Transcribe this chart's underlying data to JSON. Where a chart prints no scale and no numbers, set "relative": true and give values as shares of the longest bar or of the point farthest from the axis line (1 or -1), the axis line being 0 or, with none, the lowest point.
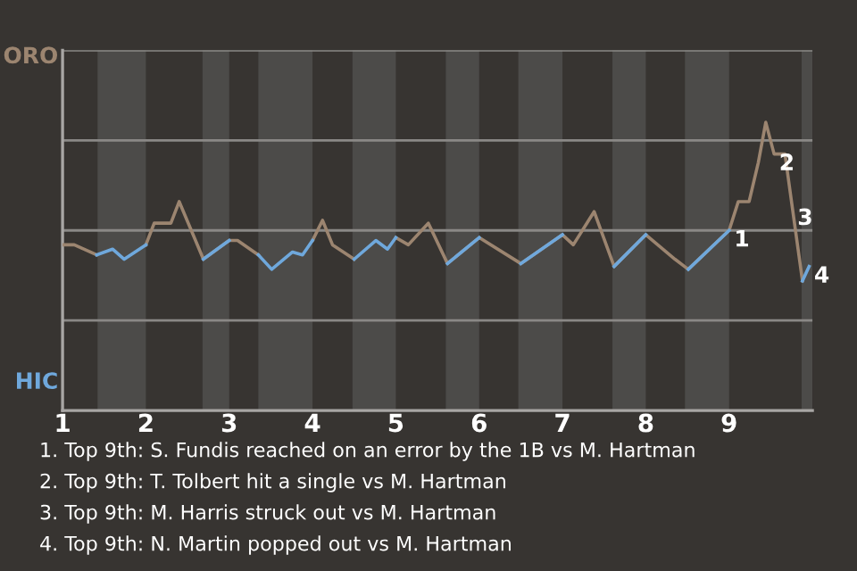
{
  "chart_data": {
    "type": "line",
    "relative": true,
    "x": [
      1.0,
      1.14,
      1.41,
      1.6,
      1.74,
      2.0,
      2.1,
      2.3,
      2.4,
      2.69,
      3.0,
      3.1,
      3.35,
      3.51,
      3.76,
      3.88,
      4.0,
      4.12,
      4.24,
      4.5,
      4.76,
      4.9,
      5.0,
      5.15,
      5.39,
      5.62,
      6.0,
      6.5,
      7.0,
      7.13,
      7.38,
      7.62,
      8.0,
      8.35,
      8.51,
      9.0,
      9.11,
      9.24,
      9.35,
      9.44,
      9.54,
      9.67,
      9.88,
      9.96
    ],
    "xlim": [
      1,
      10
    ],
    "xticks": [
      1,
      2,
      3,
      4,
      5,
      6,
      7,
      8,
      9
    ],
    "series": [
      {
        "color": "#9c8570",
        "values": [
          0.575,
          0.575,
          0.54,
          null,
          null,
          0.575,
          0.65,
          0.65,
          0.725,
          0.525,
          0.59,
          0.59,
          0.54,
          null,
          null,
          null,
          0.59,
          0.66,
          0.575,
          0.525,
          null,
          null,
          0.6,
          0.575,
          0.65,
          0.51,
          0.6,
          0.51,
          0.61,
          0.575,
          0.69,
          0.5,
          0.61,
          0.525,
          0.49,
          0.625,
          0.725,
          0.725,
          0.86,
          1,
          0.89,
          0.89,
          0.45,
          null
        ]
      },
      {
        "color": "#6fa8dc",
        "values": [
          null,
          null,
          0.54,
          0.56,
          0.525,
          0.575,
          null,
          null,
          null,
          null,
          null,
          null,
          0.54,
          0.49,
          0.55,
          0.54,
          0.59,
          null,
          null,
          null,
          null,
          null,
          null,
          null,
          null,
          0.51,
          0.6,
          null,
          null,
          null,
          null,
          0.5,
          0.61,
          null,
          null,
          null,
          null,
          null,
          null,
          null,
          null,
          null,
          0.45,
          0.5
        ]
      },
      {
        "color": "#6fa8dc",
        "values": [
          null,
          null,
          null,
          null,
          null,
          null,
          null,
          null,
          null,
          0.525,
          0.59,
          null,
          null,
          null,
          null,
          null,
          null,
          null,
          null,
          0.525,
          0.59,
          0.56,
          0.6,
          null,
          null,
          null,
          null,
          0.51,
          0.61,
          null,
          null,
          null,
          null,
          null,
          0.49,
          0.625,
          null,
          null,
          null,
          null,
          null,
          null,
          null,
          null
        ]
      }
    ],
    "grid": "y",
    "bands": [
      {
        "axis": "x",
        "from": 1.42,
        "to": 2,
        "color": "#4c4b49"
      },
      {
        "axis": "x",
        "from": 2.68,
        "to": 3,
        "color": "#4c4b49"
      },
      {
        "axis": "x",
        "from": 3.35,
        "to": 4,
        "color": "#4c4b49"
      },
      {
        "axis": "x",
        "from": 4.48,
        "to": 5,
        "color": "#4c4b49"
      },
      {
        "axis": "x",
        "from": 5.6,
        "to": 6,
        "color": "#4c4b49"
      },
      {
        "axis": "x",
        "from": 6.47,
        "to": 7,
        "color": "#4c4b49"
      },
      {
        "axis": "x",
        "from": 7.6,
        "to": 8,
        "color": "#4c4b49"
      },
      {
        "axis": "x",
        "from": 8.47,
        "to": 9,
        "color": "#4c4b49"
      },
      {
        "axis": "x",
        "from": 9.87,
        "to": 10,
        "color": "#4c4b49"
      }
    ],
    "annotations": [
      "ORO",
      "HIC",
      {
        "text": "1",
        "x": 9.0,
        "y": 0.625
      },
      {
        "text": "2",
        "x": 9.54,
        "y": 0.89
      },
      {
        "text": "3",
        "x": 9.76,
        "y": 0.7
      },
      {
        "text": "4",
        "x": 9.96,
        "y": 0.5
      },
      "1. Top 9th: S. Fundis reached on an error by the 1B vs M. Hartman",
      "2. Top 9th: T. Tolbert hit a single vs M. Hartman",
      "3. Top 9th: M. Harris struck out vs M. Hartman",
      "4. Top 9th: N. Martin popped out vs M. Hartman"
    ]
  }
}
